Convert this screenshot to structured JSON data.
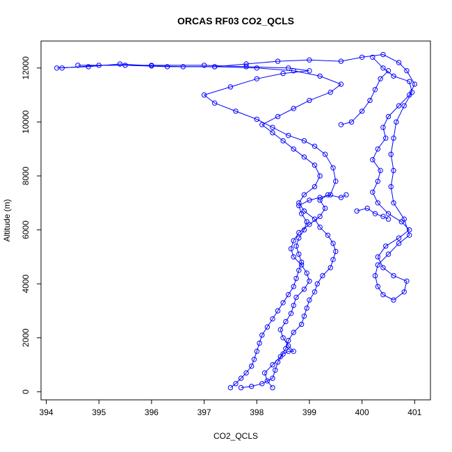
{
  "chart_data": {
    "type": "scatter",
    "title": "ORCAS RF03 CO2_QCLS",
    "xlabel": "CO2_QCLS",
    "ylabel": "Altitude (m)",
    "xlim": [
      393.9,
      401.3
    ],
    "ylim": [
      -300,
      13000
    ],
    "xticks": [
      394,
      395,
      396,
      397,
      398,
      399,
      400,
      401
    ],
    "yticks": [
      0,
      2000,
      4000,
      6000,
      8000,
      10000,
      12000
    ],
    "marker": "open-circle",
    "connected": true,
    "grid": false,
    "series": [
      {
        "color": "#0000ff",
        "points": [
          [
            397.5,
            150
          ],
          [
            397.6,
            300
          ],
          [
            397.7,
            500
          ],
          [
            397.8,
            700
          ],
          [
            397.9,
            950
          ],
          [
            397.95,
            1200
          ],
          [
            398.0,
            1500
          ],
          [
            398.05,
            1800
          ],
          [
            398.1,
            2100
          ],
          [
            398.2,
            2400
          ],
          [
            398.3,
            2700
          ],
          [
            398.4,
            3000
          ],
          [
            398.5,
            3300
          ],
          [
            398.6,
            3600
          ],
          [
            398.7,
            3900
          ],
          [
            398.75,
            4200
          ],
          [
            398.8,
            4500
          ],
          [
            398.85,
            4800
          ],
          [
            398.8,
            5100
          ],
          [
            398.75,
            5400
          ],
          [
            398.8,
            5700
          ],
          [
            398.9,
            6000
          ],
          [
            398.95,
            6300
          ],
          [
            398.85,
            6600
          ],
          [
            398.8,
            6900
          ],
          [
            399.0,
            7100
          ],
          [
            399.2,
            7200
          ],
          [
            399.4,
            7300
          ],
          [
            399.5,
            7800
          ],
          [
            399.45,
            8300
          ],
          [
            399.3,
            8800
          ],
          [
            399.1,
            9100
          ],
          [
            398.9,
            9300
          ],
          [
            398.6,
            9500
          ],
          [
            398.3,
            9800
          ],
          [
            398.0,
            10100
          ],
          [
            397.6,
            10400
          ],
          [
            397.2,
            10700
          ],
          [
            397.0,
            11000
          ],
          [
            397.5,
            11300
          ],
          [
            398.0,
            11600
          ],
          [
            398.5,
            11800
          ],
          [
            399.0,
            11900
          ],
          [
            398.6,
            12000
          ],
          [
            397.8,
            12050
          ],
          [
            397.0,
            12100
          ],
          [
            396.0,
            12100
          ],
          [
            395.0,
            12100
          ],
          [
            394.3,
            12000
          ]
        ]
      },
      {
        "color": "#0000ff",
        "points": [
          [
            394.2,
            12000
          ],
          [
            394.8,
            12050
          ],
          [
            395.4,
            12150
          ],
          [
            396.0,
            12080
          ],
          [
            396.6,
            12050
          ],
          [
            397.2,
            12050
          ],
          [
            397.8,
            12150
          ],
          [
            398.4,
            12250
          ],
          [
            399.0,
            12300
          ],
          [
            399.6,
            12250
          ],
          [
            400.0,
            12400
          ],
          [
            400.4,
            12500
          ],
          [
            400.7,
            12200
          ],
          [
            400.85,
            11900
          ],
          [
            401.0,
            11400
          ],
          [
            400.9,
            11000
          ],
          [
            400.7,
            10600
          ],
          [
            400.5,
            10200
          ],
          [
            400.4,
            9800
          ],
          [
            400.45,
            9400
          ],
          [
            400.3,
            9000
          ],
          [
            400.2,
            8600
          ],
          [
            400.35,
            8200
          ],
          [
            400.3,
            7800
          ],
          [
            400.2,
            7400
          ],
          [
            400.3,
            7000
          ],
          [
            400.5,
            6600
          ],
          [
            400.75,
            6300
          ],
          [
            400.9,
            6000
          ],
          [
            400.7,
            5700
          ],
          [
            400.45,
            5400
          ],
          [
            400.3,
            5000
          ],
          [
            400.4,
            4600
          ],
          [
            400.6,
            4300
          ],
          [
            400.85,
            4100
          ],
          [
            400.8,
            3700
          ],
          [
            400.6,
            3400
          ],
          [
            400.4,
            3600
          ],
          [
            400.3,
            3900
          ],
          [
            400.25,
            4300
          ],
          [
            400.3,
            4700
          ],
          [
            400.5,
            5100
          ],
          [
            400.7,
            5500
          ],
          [
            400.9,
            5800
          ],
          [
            400.8,
            6400
          ],
          [
            400.6,
            7000
          ],
          [
            400.55,
            7600
          ],
          [
            400.6,
            8200
          ],
          [
            400.55,
            8800
          ],
          [
            400.6,
            9400
          ],
          [
            400.65,
            10000
          ],
          [
            400.8,
            10600
          ],
          [
            400.95,
            11100
          ],
          [
            400.9,
            11500
          ],
          [
            400.6,
            11700
          ],
          [
            400.4,
            12000
          ],
          [
            400.2,
            12400
          ]
        ]
      },
      {
        "color": "#0000ff",
        "points": [
          [
            398.3,
            150
          ],
          [
            398.2,
            400
          ],
          [
            398.15,
            700
          ],
          [
            398.3,
            1000
          ],
          [
            398.45,
            1300
          ],
          [
            398.55,
            1600
          ],
          [
            398.6,
            1900
          ],
          [
            398.7,
            2200
          ],
          [
            398.85,
            2500
          ],
          [
            398.9,
            2800
          ],
          [
            398.95,
            3100
          ],
          [
            399.0,
            3400
          ],
          [
            399.1,
            3700
          ],
          [
            399.15,
            4000
          ],
          [
            399.25,
            4300
          ],
          [
            399.4,
            4600
          ],
          [
            399.45,
            4900
          ],
          [
            399.5,
            5200
          ],
          [
            399.45,
            5500
          ],
          [
            399.35,
            5800
          ],
          [
            399.2,
            6100
          ],
          [
            399.1,
            6400
          ],
          [
            398.9,
            6700
          ],
          [
            398.8,
            7000
          ],
          [
            398.9,
            7300
          ],
          [
            399.1,
            7600
          ],
          [
            399.2,
            8000
          ],
          [
            399.1,
            8400
          ],
          [
            398.9,
            8700
          ],
          [
            398.7,
            9000
          ],
          [
            398.5,
            9300
          ],
          [
            398.3,
            9600
          ],
          [
            398.1,
            9900
          ],
          [
            398.4,
            10200
          ],
          [
            398.7,
            10500
          ],
          [
            399.0,
            10800
          ],
          [
            399.4,
            11100
          ],
          [
            399.6,
            11400
          ],
          [
            399.2,
            11700
          ],
          [
            398.7,
            11900
          ],
          [
            398.0,
            12000
          ],
          [
            397.2,
            12050
          ],
          [
            396.3,
            12050
          ],
          [
            395.5,
            12100
          ],
          [
            394.6,
            12100
          ]
        ]
      },
      {
        "color": "#0000ff",
        "points": [
          [
            397.7,
            150
          ],
          [
            397.9,
            200
          ],
          [
            398.1,
            300
          ],
          [
            398.3,
            500
          ],
          [
            398.35,
            800
          ],
          [
            398.4,
            1100
          ],
          [
            398.5,
            1400
          ],
          [
            398.6,
            1500
          ],
          [
            398.7,
            1500
          ],
          [
            398.6,
            1700
          ],
          [
            398.5,
            2000
          ],
          [
            398.45,
            2300
          ],
          [
            398.55,
            2600
          ],
          [
            398.65,
            2900
          ],
          [
            398.7,
            3200
          ],
          [
            398.75,
            3500
          ],
          [
            398.9,
            3800
          ],
          [
            399.0,
            4100
          ],
          [
            398.95,
            4400
          ],
          [
            398.85,
            4700
          ],
          [
            398.7,
            5000
          ],
          [
            398.65,
            5300
          ],
          [
            398.7,
            5600
          ],
          [
            398.8,
            5900
          ],
          [
            399.0,
            6200
          ],
          [
            399.2,
            6500
          ],
          [
            399.3,
            6800
          ],
          [
            399.2,
            7100
          ],
          [
            399.35,
            7300
          ],
          [
            399.6,
            7200
          ],
          [
            399.7,
            7300
          ]
        ]
      },
      {
        "color": "#0000ff",
        "points": [
          [
            399.9,
            6700
          ],
          [
            400.1,
            6800
          ],
          [
            400.25,
            6600
          ],
          [
            400.4,
            6500
          ],
          [
            400.5,
            6400
          ]
        ]
      },
      {
        "color": "#0000ff",
        "points": [
          [
            399.6,
            9900
          ],
          [
            399.8,
            10000
          ],
          [
            400.0,
            10400
          ],
          [
            400.15,
            10800
          ],
          [
            400.25,
            11200
          ],
          [
            400.35,
            11600
          ],
          [
            400.5,
            11900
          ]
        ]
      }
    ]
  }
}
